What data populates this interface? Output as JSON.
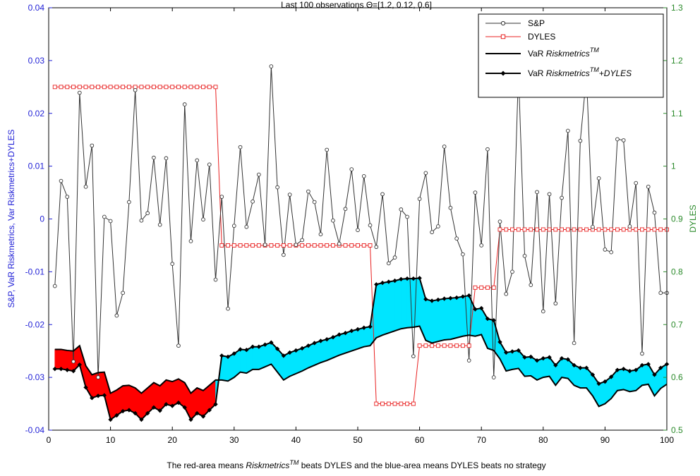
{
  "chart_data": {
    "type": "line",
    "title": "Last 100 observations Θ=[1.2, 0.12, 0.6]",
    "xlabel_parts": [
      "The red-area means ",
      "Riskmetrics",
      "TM",
      " beats DYLES and the blue-area means DYLES beats no strategy"
    ],
    "ylabel_left": "S&P, VaR Riskmetrics, Var Riskmetrics+DYLES",
    "ylabel_right": "DYLES",
    "xlim": [
      0,
      100
    ],
    "ylim_left": [
      -0.04,
      0.04
    ],
    "ylim_right": [
      0.5,
      1.3
    ],
    "xticks": [
      "0",
      "10",
      "20",
      "30",
      "40",
      "50",
      "60",
      "70",
      "80",
      "90",
      "100"
    ],
    "yticks_left": [
      "-0.04",
      "-0.03",
      "-0.02",
      "-0.01",
      "0",
      "0.01",
      "0.02",
      "0.03",
      "0.04"
    ],
    "yticks_right": [
      "0.5",
      "0.6",
      "0.7",
      "0.8",
      "0.9",
      "1",
      "1.1",
      "1.2",
      "1.3"
    ],
    "legend_position": "top-right",
    "legend": [
      {
        "label": "S&P",
        "sup": "",
        "tail": ""
      },
      {
        "label": "DYLES",
        "sup": "",
        "tail": ""
      },
      {
        "label": "VaR ",
        "italic": "Riskmetrics",
        "sup": "TM",
        "tail": ""
      },
      {
        "label": "VaR ",
        "italic": "Riskmetrics",
        "sup": "TM",
        "tail": "+DYLES"
      }
    ],
    "colors": {
      "sp": "#333333",
      "dyles": "#e82020",
      "var": "#000000",
      "red_area": "#ff0000",
      "blue_area": "#00e5ff",
      "axis_left": "#1f1fd6",
      "axis_right": "#2a8a2a"
    },
    "series": [
      {
        "name": "S&P",
        "axis": "left",
        "x": [
          1,
          2,
          3,
          4,
          5,
          6,
          7,
          8,
          9,
          10,
          11,
          12,
          13,
          14,
          15,
          16,
          17,
          18,
          19,
          20,
          21,
          22,
          23,
          24,
          25,
          26,
          27,
          28,
          29,
          30,
          31,
          32,
          33,
          34,
          35,
          36,
          37,
          38,
          39,
          40,
          41,
          42,
          43,
          44,
          45,
          46,
          47,
          48,
          49,
          50,
          51,
          52,
          53,
          54,
          55,
          56,
          57,
          58,
          59,
          60,
          61,
          62,
          63,
          64,
          65,
          66,
          67,
          68,
          69,
          70,
          71,
          72,
          73,
          74,
          75,
          76,
          77,
          78,
          79,
          80,
          81,
          82,
          83,
          84,
          85,
          86,
          87,
          88,
          89,
          90,
          91,
          92,
          93,
          94,
          95,
          96,
          97,
          98,
          99,
          100
        ],
        "values": [
          -0.0127,
          0.0072,
          0.0042,
          -0.027,
          0.0239,
          0.0061,
          0.0139,
          -0.03,
          0.0004,
          -0.0004,
          -0.0183,
          -0.014,
          0.0032,
          0.0244,
          -0.0003,
          0.0011,
          0.0116,
          -0.0011,
          0.0115,
          -0.0085,
          -0.024,
          0.0217,
          -0.0042,
          0.0111,
          -0.0001,
          0.0103,
          -0.0115,
          0.0042,
          -0.017,
          -0.0013,
          0.0136,
          -0.0015,
          0.0033,
          0.0084,
          -0.0049,
          0.0289,
          0.006,
          -0.0068,
          0.0046,
          -0.0049,
          -0.004,
          0.0052,
          0.0032,
          -0.0029,
          0.0131,
          -0.0003,
          -0.0047,
          0.0019,
          0.0094,
          -0.0021,
          0.0081,
          -0.0012,
          -0.0053,
          0.0047,
          -0.0084,
          -0.0073,
          0.0018,
          0.0004,
          -0.026,
          0.0038,
          0.0087,
          -0.0025,
          -0.0014,
          0.0137,
          0.0021,
          -0.0037,
          -0.0067,
          -0.0268,
          0.005,
          -0.005,
          0.0132,
          -0.03,
          -0.0005,
          -0.0142,
          -0.01,
          0.028,
          -0.007,
          -0.0125,
          0.0051,
          -0.0175,
          0.0047,
          -0.016,
          0.004,
          0.0167,
          -0.0235,
          0.0148,
          0.0272,
          -0.0015,
          0.0077,
          -0.0058,
          -0.0063,
          0.0151,
          0.0149,
          -0.0014,
          0.0068,
          -0.0255,
          0.0061,
          0.0012,
          -0.014,
          -0.014
        ]
      },
      {
        "name": "DYLES",
        "axis": "right",
        "x": [
          1,
          2,
          3,
          4,
          5,
          6,
          7,
          8,
          9,
          10,
          11,
          12,
          13,
          14,
          15,
          16,
          17,
          18,
          19,
          20,
          21,
          22,
          23,
          24,
          25,
          26,
          27,
          28,
          29,
          30,
          31,
          32,
          33,
          34,
          35,
          36,
          37,
          38,
          39,
          40,
          41,
          42,
          43,
          44,
          45,
          46,
          47,
          48,
          49,
          50,
          51,
          52,
          53,
          54,
          55,
          56,
          57,
          58,
          59,
          60,
          61,
          62,
          63,
          64,
          65,
          66,
          67,
          68,
          69,
          70,
          71,
          72,
          73,
          74,
          75,
          76,
          77,
          78,
          79,
          80,
          81,
          82,
          83,
          84,
          85,
          86,
          87,
          88,
          89,
          90,
          91,
          92,
          93,
          94,
          95,
          96,
          97,
          98,
          99,
          100
        ],
        "values": [
          1.15,
          1.15,
          1.15,
          1.15,
          1.15,
          1.15,
          1.15,
          1.15,
          1.15,
          1.15,
          1.15,
          1.15,
          1.15,
          1.15,
          1.15,
          1.15,
          1.15,
          1.15,
          1.15,
          1.15,
          1.15,
          1.15,
          1.15,
          1.15,
          1.15,
          1.15,
          1.15,
          0.85,
          0.85,
          0.85,
          0.85,
          0.85,
          0.85,
          0.85,
          0.85,
          0.85,
          0.85,
          0.85,
          0.85,
          0.85,
          0.85,
          0.85,
          0.85,
          0.85,
          0.85,
          0.85,
          0.85,
          0.85,
          0.85,
          0.85,
          0.85,
          0.85,
          0.55,
          0.55,
          0.55,
          0.55,
          0.55,
          0.55,
          0.55,
          0.66,
          0.66,
          0.66,
          0.66,
          0.66,
          0.66,
          0.66,
          0.66,
          0.66,
          0.77,
          0.77,
          0.77,
          0.77,
          0.88,
          0.88,
          0.88,
          0.88,
          0.88,
          0.88,
          0.88,
          0.88,
          0.88,
          0.88,
          0.88,
          0.88,
          0.88,
          0.88,
          0.88,
          0.88,
          0.88,
          0.88,
          0.88,
          0.88,
          0.88,
          0.88,
          0.88,
          0.88,
          0.88,
          0.88,
          0.88,
          0.88
        ]
      },
      {
        "name": "VaR Riskmetrics™",
        "axis": "left",
        "x": [
          1,
          2,
          3,
          4,
          5,
          6,
          7,
          8,
          9,
          10,
          11,
          12,
          13,
          14,
          15,
          16,
          17,
          18,
          19,
          20,
          21,
          22,
          23,
          24,
          25,
          26,
          27,
          28,
          29,
          30,
          31,
          32,
          33,
          34,
          35,
          36,
          37,
          38,
          39,
          40,
          41,
          42,
          43,
          44,
          45,
          46,
          47,
          48,
          49,
          50,
          51,
          52,
          53,
          54,
          55,
          56,
          57,
          58,
          59,
          60,
          61,
          62,
          63,
          64,
          65,
          66,
          67,
          68,
          69,
          70,
          71,
          72,
          73,
          74,
          75,
          76,
          77,
          78,
          79,
          80,
          81,
          82,
          83,
          84,
          85,
          86,
          87,
          88,
          89,
          90,
          91,
          92,
          93,
          94,
          95,
          96,
          97,
          98,
          99,
          100
        ],
        "values": [
          -0.0247,
          -0.0247,
          -0.0249,
          -0.025,
          -0.024,
          -0.0278,
          -0.0295,
          -0.0291,
          -0.029,
          -0.033,
          -0.0324,
          -0.0316,
          -0.0315,
          -0.032,
          -0.033,
          -0.032,
          -0.031,
          -0.0316,
          -0.0305,
          -0.0308,
          -0.0303,
          -0.031,
          -0.033,
          -0.032,
          -0.0325,
          -0.0315,
          -0.0305,
          -0.0305,
          -0.0307,
          -0.03,
          -0.029,
          -0.0292,
          -0.0285,
          -0.0285,
          -0.028,
          -0.0275,
          -0.029,
          -0.0305,
          -0.0298,
          -0.0293,
          -0.0288,
          -0.0282,
          -0.0277,
          -0.0272,
          -0.0268,
          -0.0263,
          -0.0258,
          -0.0254,
          -0.025,
          -0.0246,
          -0.0242,
          -0.024,
          -0.0225,
          -0.022,
          -0.0216,
          -0.0212,
          -0.0208,
          -0.0206,
          -0.0205,
          -0.0203,
          -0.023,
          -0.0235,
          -0.0232,
          -0.0229,
          -0.0228,
          -0.0225,
          -0.0222,
          -0.022,
          -0.0222,
          -0.0219,
          -0.0245,
          -0.0249,
          -0.0265,
          -0.0288,
          -0.0285,
          -0.0283,
          -0.0298,
          -0.0297,
          -0.0305,
          -0.03,
          -0.0298,
          -0.0315,
          -0.03,
          -0.0302,
          -0.0315,
          -0.032,
          -0.032,
          -0.0335,
          -0.0355,
          -0.035,
          -0.034,
          -0.0325,
          -0.0323,
          -0.0327,
          -0.0325,
          -0.0315,
          -0.0313,
          -0.0335,
          -0.0321,
          -0.0313
        ]
      },
      {
        "name": "VaR Riskmetrics™+DYLES",
        "axis": "left",
        "x": [
          1,
          2,
          3,
          4,
          5,
          6,
          7,
          8,
          9,
          10,
          11,
          12,
          13,
          14,
          15,
          16,
          17,
          18,
          19,
          20,
          21,
          22,
          23,
          24,
          25,
          26,
          27,
          28,
          29,
          30,
          31,
          32,
          33,
          34,
          35,
          36,
          37,
          38,
          39,
          40,
          41,
          42,
          43,
          44,
          45,
          46,
          47,
          48,
          49,
          50,
          51,
          52,
          53,
          54,
          55,
          56,
          57,
          58,
          59,
          60,
          61,
          62,
          63,
          64,
          65,
          66,
          67,
          68,
          69,
          70,
          71,
          72,
          73,
          74,
          75,
          76,
          77,
          78,
          79,
          80,
          81,
          82,
          83,
          84,
          85,
          86,
          87,
          88,
          89,
          90,
          91,
          92,
          93,
          94,
          95,
          96,
          97,
          98,
          99,
          100
        ],
        "values": [
          -0.0284,
          -0.0284,
          -0.0286,
          -0.0288,
          -0.0276,
          -0.0319,
          -0.0339,
          -0.0335,
          -0.0334,
          -0.038,
          -0.0372,
          -0.0364,
          -0.0362,
          -0.0368,
          -0.038,
          -0.0368,
          -0.0357,
          -0.0363,
          -0.0351,
          -0.0354,
          -0.0348,
          -0.0357,
          -0.038,
          -0.0368,
          -0.0374,
          -0.0362,
          -0.0351,
          -0.0259,
          -0.0261,
          -0.0255,
          -0.0247,
          -0.0248,
          -0.0242,
          -0.0242,
          -0.0238,
          -0.0234,
          -0.0246,
          -0.0259,
          -0.0253,
          -0.0249,
          -0.0245,
          -0.024,
          -0.0235,
          -0.0231,
          -0.0228,
          -0.0224,
          -0.0219,
          -0.0216,
          -0.0212,
          -0.0209,
          -0.0206,
          -0.0204,
          -0.0124,
          -0.0121,
          -0.0119,
          -0.0117,
          -0.0114,
          -0.0113,
          -0.0113,
          -0.0112,
          -0.0152,
          -0.0155,
          -0.0153,
          -0.0151,
          -0.015,
          -0.0149,
          -0.0147,
          -0.0145,
          -0.0171,
          -0.0169,
          -0.0189,
          -0.0192,
          -0.0233,
          -0.0253,
          -0.0251,
          -0.0249,
          -0.0262,
          -0.0261,
          -0.0268,
          -0.0264,
          -0.0262,
          -0.0277,
          -0.0264,
          -0.0266,
          -0.0277,
          -0.0282,
          -0.0282,
          -0.0295,
          -0.0312,
          -0.0308,
          -0.0299,
          -0.0286,
          -0.0284,
          -0.0288,
          -0.0286,
          -0.0277,
          -0.0275,
          -0.0295,
          -0.0282,
          -0.0275
        ]
      }
    ]
  }
}
